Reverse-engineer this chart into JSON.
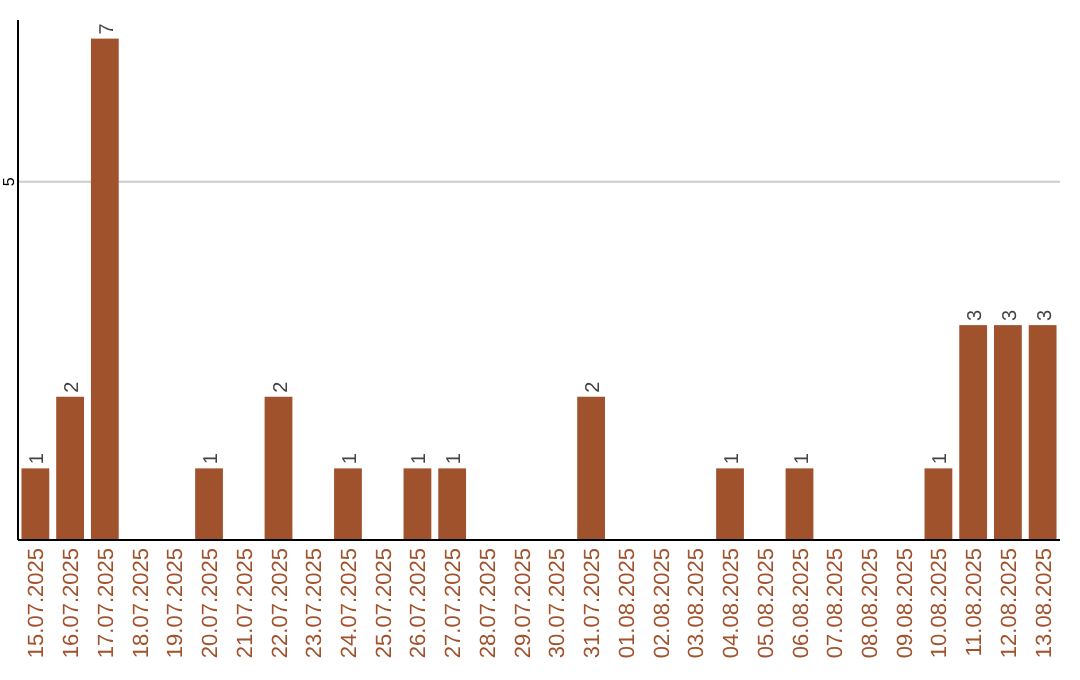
{
  "chart_data": {
    "type": "bar",
    "categories": [
      "15.07.2025",
      "16.07.2025",
      "17.07.2025",
      "18.07.2025",
      "19.07.2025",
      "20.07.2025",
      "21.07.2025",
      "22.07.2025",
      "23.07.2025",
      "24.07.2025",
      "25.07.2025",
      "26.07.2025",
      "27.07.2025",
      "28.07.2025",
      "29.07.2025",
      "30.07.2025",
      "31.07.2025",
      "01.08.2025",
      "02.08.2025",
      "03.08.2025",
      "04.08.2025",
      "05.08.2025",
      "06.08.2025",
      "07.08.2025",
      "08.08.2025",
      "09.08.2025",
      "10.08.2025",
      "11.08.2025",
      "12.08.2025",
      "13.08.2025"
    ],
    "values": [
      1,
      2,
      7,
      0,
      0,
      1,
      0,
      2,
      0,
      1,
      0,
      1,
      1,
      0,
      0,
      0,
      2,
      0,
      0,
      0,
      1,
      0,
      1,
      0,
      0,
      0,
      1,
      3,
      3,
      3
    ],
    "value_labels": [
      "1",
      "2",
      "7",
      null,
      null,
      "1",
      null,
      "2",
      null,
      "1",
      null,
      "1",
      "1",
      null,
      null,
      null,
      "2",
      null,
      null,
      null,
      "1",
      null,
      "1",
      null,
      null,
      null,
      "1",
      "3",
      "3",
      "3"
    ],
    "color": "#a0522d",
    "ylim": [
      0,
      7.26
    ],
    "yticks": [
      5
    ],
    "grid": "y"
  }
}
